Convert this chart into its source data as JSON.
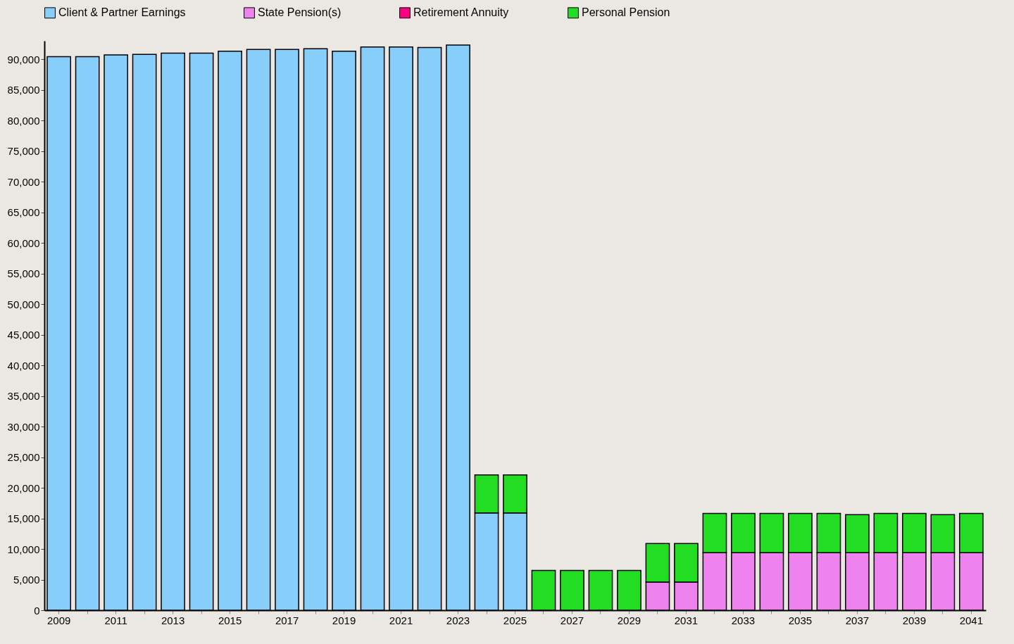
{
  "chart_data": {
    "type": "bar",
    "stacked": true,
    "legend": "top",
    "grid": false,
    "categories": [
      "2009",
      null,
      "2011",
      null,
      "2013",
      null,
      "2015",
      null,
      "2017",
      null,
      "2019",
      null,
      "2021",
      null,
      "2023",
      null,
      "2025",
      null,
      "2027",
      null,
      "2029",
      null,
      "2031",
      null,
      "2033",
      null,
      "2035",
      null,
      "2037",
      null,
      "2039",
      null,
      "2041"
    ],
    "series": [
      {
        "name": "Client & Partner Earnings",
        "color": "#87cefa",
        "values": [
          90400,
          90400,
          90700,
          90800,
          91000,
          91000,
          91300,
          91600,
          91600,
          91700,
          91300,
          92000,
          92000,
          91900,
          92300,
          15900,
          15900,
          0,
          0,
          0,
          0,
          0,
          0,
          0,
          0,
          0,
          0,
          0,
          0,
          0,
          0,
          0,
          0
        ]
      },
      {
        "name": "State Pension(s)",
        "color": "#ee82ee",
        "values": [
          0,
          0,
          0,
          0,
          0,
          0,
          0,
          0,
          0,
          0,
          0,
          0,
          0,
          0,
          0,
          0,
          0,
          0,
          0,
          0,
          0,
          4600,
          4600,
          9400,
          9400,
          9400,
          9400,
          9400,
          9400,
          9400,
          9400,
          9400,
          9400
        ]
      },
      {
        "name": "Retirement Annuity",
        "color": "#ff0080",
        "values": [
          0,
          0,
          0,
          0,
          0,
          0,
          0,
          0,
          0,
          0,
          0,
          0,
          0,
          0,
          0,
          0,
          0,
          0,
          0,
          0,
          0,
          0,
          0,
          0,
          0,
          0,
          0,
          0,
          0,
          0,
          0,
          0,
          0
        ]
      },
      {
        "name": "Personal Pension",
        "color": "#22dd22",
        "values": [
          0,
          0,
          0,
          0,
          0,
          0,
          0,
          0,
          0,
          0,
          0,
          0,
          0,
          0,
          0,
          6200,
          6200,
          6500,
          6500,
          6500,
          6500,
          6300,
          6300,
          6400,
          6400,
          6400,
          6400,
          6400,
          6200,
          6400,
          6400,
          6200,
          6400
        ]
      }
    ],
    "ylim": [
      0,
      93000
    ],
    "yticks": [
      0,
      {
        "value": 5000,
        "label": "5,000"
      },
      {
        "value": 10000,
        "label": "10,000"
      },
      {
        "value": 15000,
        "label": "15,000"
      },
      {
        "value": 20000,
        "label": "20,000"
      },
      {
        "value": 25000,
        "label": "25,000"
      },
      {
        "value": 30000,
        "label": "30,000"
      },
      {
        "value": 35000,
        "label": "35,000"
      },
      {
        "value": 40000,
        "label": "40,000"
      },
      {
        "value": 45000,
        "label": "45,000"
      },
      {
        "value": 50000,
        "label": "50,000"
      },
      {
        "value": 55000,
        "label": "55,000"
      },
      {
        "value": 60000,
        "label": "60,000"
      },
      {
        "value": 65000,
        "label": "65,000"
      },
      {
        "value": 70000,
        "label": "70,000"
      },
      {
        "value": 75000,
        "label": "75,000"
      },
      {
        "value": 80000,
        "label": "80,000"
      },
      {
        "value": 85000,
        "label": "85,000"
      },
      {
        "value": 90000,
        "label": "90,000"
      }
    ]
  }
}
